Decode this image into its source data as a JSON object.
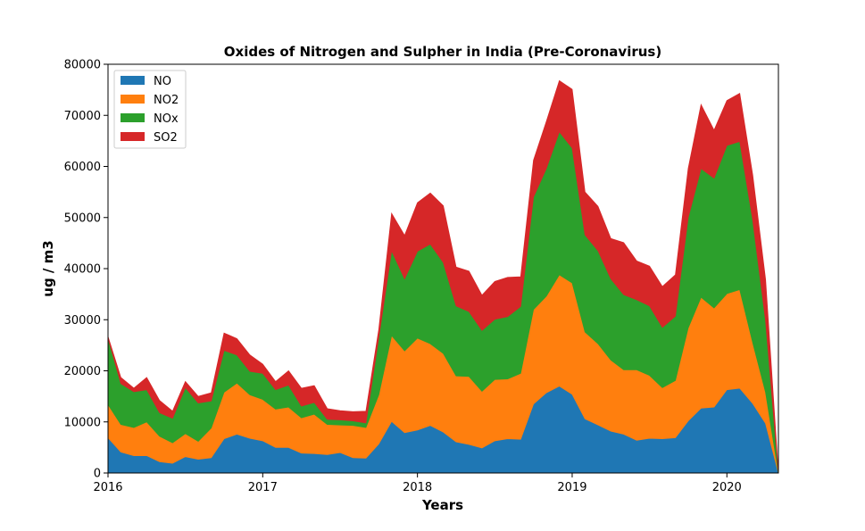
{
  "chart_data": {
    "type": "area",
    "stacked": true,
    "title": "Oxides of Nitrogen and Sulpher in India (Pre-Coronavirus)",
    "xlabel": "Years",
    "ylabel": "ug / m3",
    "xlim": [
      2016.0,
      2020.333
    ],
    "ylim": [
      0,
      80000
    ],
    "xticks": [
      2016,
      2017,
      2018,
      2019,
      2020
    ],
    "yticks": [
      0,
      10000,
      20000,
      30000,
      40000,
      50000,
      60000,
      70000,
      80000
    ],
    "ytick_labels": [
      "0",
      "10000",
      "20000",
      "30000",
      "40000",
      "50000",
      "60000",
      "70000",
      "80000"
    ],
    "grid": false,
    "legend": "top-left",
    "x": [
      2016.0,
      2016.083,
      2016.167,
      2016.25,
      2016.333,
      2016.417,
      2016.5,
      2016.583,
      2016.667,
      2016.75,
      2016.833,
      2016.917,
      2017.0,
      2017.083,
      2017.167,
      2017.25,
      2017.333,
      2017.417,
      2017.5,
      2017.583,
      2017.667,
      2017.75,
      2017.833,
      2017.917,
      2018.0,
      2018.083,
      2018.167,
      2018.25,
      2018.333,
      2018.417,
      2018.5,
      2018.583,
      2018.667,
      2018.75,
      2018.833,
      2018.917,
      2019.0,
      2019.083,
      2019.167,
      2019.25,
      2019.333,
      2019.417,
      2019.5,
      2019.583,
      2019.667,
      2019.75,
      2019.833,
      2019.917,
      2020.0,
      2020.083,
      2020.167,
      2020.25,
      2020.333
    ],
    "series": [
      {
        "name": "NO",
        "color": "#1f77b4",
        "values": [
          6900,
          4100,
          3400,
          3400,
          2200,
          1900,
          3200,
          2700,
          3000,
          6700,
          7600,
          6800,
          6300,
          5000,
          5000,
          3900,
          3800,
          3600,
          4000,
          3000,
          2900,
          5700,
          10100,
          7900,
          8400,
          9300,
          8000,
          6100,
          5600,
          4900,
          6300,
          6700,
          6600,
          13500,
          15700,
          17000,
          15400,
          10600,
          9400,
          8200,
          7600,
          6400,
          6800,
          6700,
          6900,
          10200,
          12700,
          12900,
          16300,
          16600,
          13600,
          9700,
          0
        ]
      },
      {
        "name": "NO2",
        "color": "#ff7f0e",
        "values": [
          6500,
          5400,
          5500,
          6600,
          5000,
          4000,
          4500,
          3500,
          5800,
          9100,
          10000,
          8500,
          8100,
          7500,
          7900,
          6900,
          7700,
          5900,
          5400,
          6300,
          6000,
          9600,
          16800,
          16000,
          18000,
          16000,
          15400,
          12900,
          13300,
          11100,
          12000,
          11700,
          12900,
          18500,
          18900,
          21800,
          21800,
          17000,
          15900,
          13900,
          12600,
          13800,
          12300,
          10000,
          11200,
          18200,
          21700,
          19400,
          18800,
          19300,
          11900,
          6100,
          0
        ]
      },
      {
        "name": "NOx",
        "color": "#2ca02c",
        "values": [
          13000,
          8000,
          7000,
          6300,
          4600,
          4800,
          9000,
          7500,
          5300,
          8200,
          5500,
          4600,
          5100,
          3800,
          4300,
          2300,
          2300,
          1000,
          1000,
          900,
          900,
          11200,
          16600,
          14100,
          17000,
          19500,
          17800,
          13700,
          12700,
          11900,
          11800,
          12200,
          13100,
          22000,
          25000,
          28000,
          26400,
          19000,
          18200,
          15900,
          14700,
          13700,
          13600,
          11800,
          12600,
          21600,
          25200,
          25400,
          29000,
          29000,
          24000,
          14000,
          0
        ]
      },
      {
        "name": "SO2",
        "color": "#d62728",
        "values": [
          300,
          1200,
          700,
          2400,
          2400,
          1400,
          1200,
          1300,
          1600,
          3400,
          3200,
          3200,
          1800,
          1600,
          2800,
          3500,
          3300,
          2100,
          1800,
          1800,
          2300,
          1600,
          7300,
          8500,
          9500,
          10000,
          11100,
          7600,
          7900,
          6900,
          7400,
          7700,
          5800,
          7200,
          9200,
          10000,
          11500,
          8400,
          8700,
          7900,
          10200,
          7600,
          7800,
          8000,
          8100,
          9600,
          12500,
          9400,
          8800,
          9400,
          8800,
          8100,
          0
        ]
      }
    ]
  }
}
